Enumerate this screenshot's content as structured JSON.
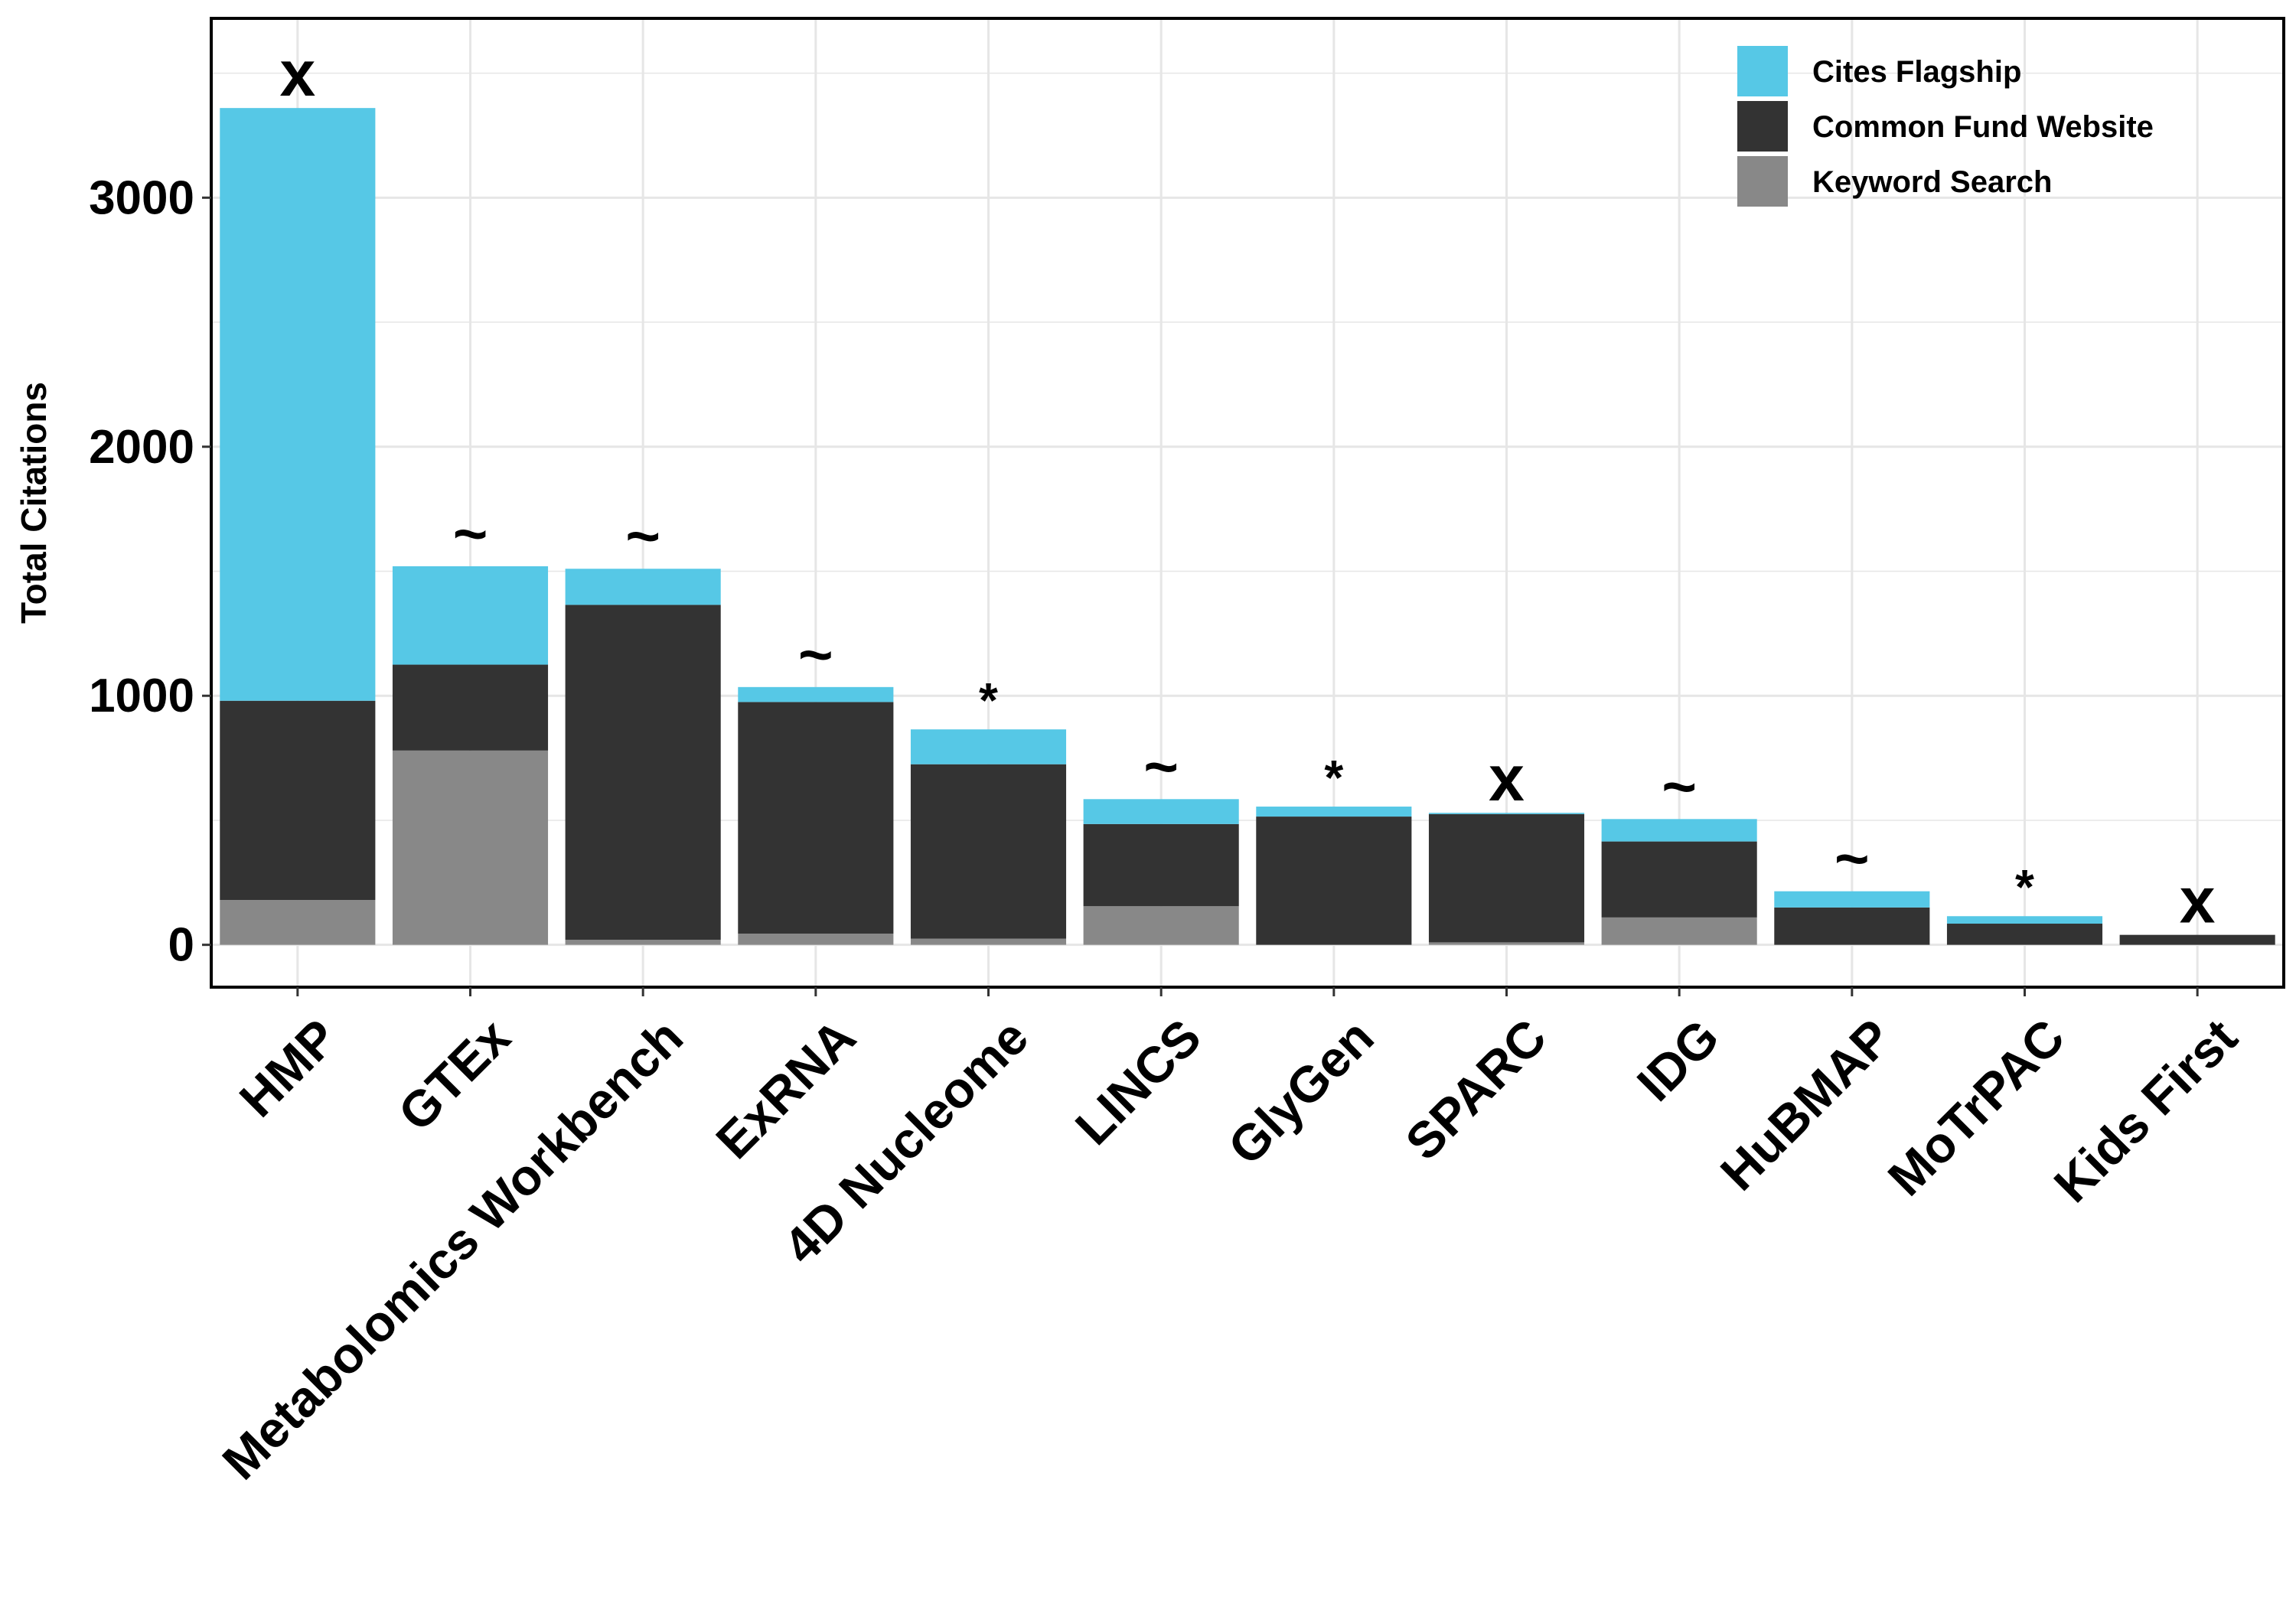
{
  "chart_data": {
    "type": "bar",
    "stacked": true,
    "title": "",
    "xlabel": "",
    "ylabel": "Total Citations",
    "ylim": [
      -170,
      3720
    ],
    "yticks": [
      0,
      1000,
      2000,
      3000
    ],
    "grid": true,
    "legend_position": "top-right",
    "categories": [
      "HMP",
      "GTEx",
      "Metabolomics Workbench",
      "ExRNA",
      "4D Nucleome",
      "LINCS",
      "GlyGen",
      "SPARC",
      "IDG",
      "HuBMAP",
      "MoTrPAC",
      "Kids First"
    ],
    "series": [
      {
        "name": "Keyword Search",
        "color": "#888888",
        "values": [
          180,
          780,
          20,
          45,
          25,
          155,
          0,
          10,
          110,
          0,
          0,
          0
        ]
      },
      {
        "name": "Common Fund Website",
        "color": "#333333",
        "values": [
          800,
          345,
          1345,
          930,
          700,
          330,
          515,
          515,
          305,
          150,
          85,
          40
        ]
      },
      {
        "name": "Cites Flagship",
        "color": "#56C8E6",
        "values": [
          2380,
          395,
          145,
          60,
          140,
          100,
          40,
          5,
          90,
          65,
          30,
          0
        ]
      }
    ],
    "legend": [
      "Cites Flagship",
      "Common Fund Website",
      "Keyword Search"
    ],
    "annotations": [
      "x",
      "~",
      "~",
      "~",
      "*",
      "~",
      "*",
      "x",
      "~",
      "~",
      "*",
      "x"
    ]
  }
}
